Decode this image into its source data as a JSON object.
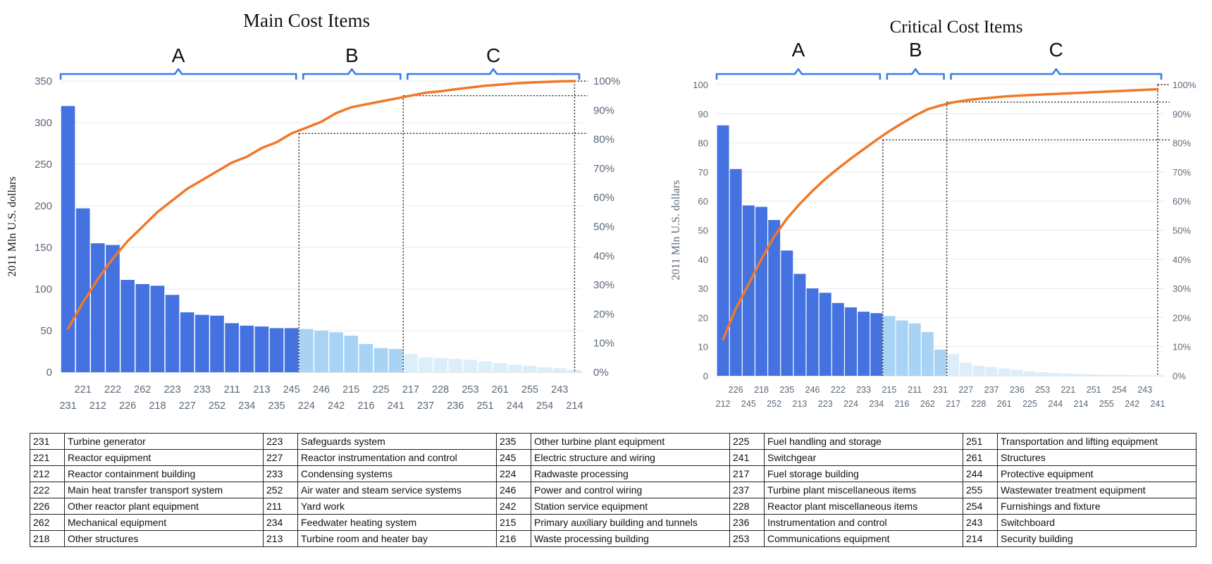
{
  "chart_data": [
    {
      "type": "bar",
      "title": "Main Cost Items",
      "ylabel": "2011 Mln U.S. dollars",
      "ylim": [
        0,
        350
      ],
      "yticks": [
        0,
        50,
        100,
        150,
        200,
        250,
        300,
        350
      ],
      "y2ticks": [
        "0%",
        "10%",
        "20%",
        "30%",
        "40%",
        "50%",
        "60%",
        "70%",
        "80%",
        "90%",
        "100%"
      ],
      "categories": [
        "231",
        "221",
        "212",
        "222",
        "226",
        "262",
        "218",
        "223",
        "227",
        "233",
        "252",
        "211",
        "234",
        "213",
        "235",
        "245",
        "224",
        "246",
        "242",
        "215",
        "216",
        "225",
        "241",
        "217",
        "237",
        "228",
        "236",
        "253",
        "251",
        "261",
        "244",
        "255",
        "254",
        "243",
        "214"
      ],
      "values": [
        320,
        197,
        155,
        153,
        111,
        106,
        104,
        93,
        72,
        69,
        68,
        59,
        56,
        55,
        53,
        53,
        52,
        50,
        48,
        44,
        34,
        29,
        28,
        22,
        18,
        17,
        16,
        15,
        13,
        11,
        9,
        8,
        6,
        5,
        3
      ],
      "cumulative_pct": [
        15,
        24,
        32,
        39,
        45,
        50,
        55,
        59,
        63,
        66,
        69,
        72,
        74,
        77,
        79,
        82,
        84,
        86,
        89,
        91,
        92,
        93,
        94,
        95,
        96,
        96.5,
        97.2,
        97.8,
        98.4,
        98.8,
        99.2,
        99.5,
        99.7,
        99.9,
        100
      ],
      "groups": [
        {
          "label": "A",
          "start": 0,
          "end": 15
        },
        {
          "label": "B",
          "start": 16,
          "end": 22
        },
        {
          "label": "C",
          "start": 23,
          "end": 34
        }
      ],
      "thresholds_pct": [
        82,
        95
      ]
    },
    {
      "type": "bar",
      "title": "Critical Cost Items",
      "ylabel": "2011 Mln U.S. dollars",
      "ylim": [
        0,
        100
      ],
      "yticks": [
        0,
        10,
        20,
        30,
        40,
        50,
        60,
        70,
        80,
        90,
        100
      ],
      "y2ticks": [
        "0%",
        "10%",
        "20%",
        "30%",
        "40%",
        "50%",
        "60%",
        "70%",
        "80%",
        "90%",
        "100%"
      ],
      "categories": [
        "212",
        "226",
        "245",
        "218",
        "252",
        "235",
        "213",
        "246",
        "223",
        "222",
        "224",
        "233",
        "234",
        "215",
        "216",
        "211",
        "262",
        "231",
        "217",
        "227",
        "228",
        "237",
        "261",
        "236",
        "225",
        "253",
        "244",
        "221",
        "214",
        "251",
        "255",
        "254",
        "242",
        "243",
        "241"
      ],
      "values": [
        86,
        71,
        58.5,
        58,
        53.5,
        43,
        35,
        30,
        28.5,
        25,
        23.5,
        22,
        21.5,
        20.5,
        19,
        18,
        15,
        9,
        7.5,
        4.5,
        3.5,
        3,
        2.5,
        2,
        1.5,
        1.2,
        1,
        0.8,
        0.6,
        0.5,
        0.4,
        0.3,
        0.2,
        0.15,
        0.1
      ],
      "cumulative_pct": [
        12.5,
        23,
        31.5,
        40,
        47.8,
        54,
        59,
        63.5,
        67.6,
        71.2,
        74.6,
        77.8,
        81,
        84,
        86.7,
        89.3,
        91.5,
        92.8,
        93.9,
        94.6,
        95.1,
        95.5,
        95.9,
        96.2,
        96.4,
        96.6,
        96.8,
        97,
        97.2,
        97.4,
        97.6,
        97.8,
        98,
        98.2,
        98.4
      ],
      "groups": [
        {
          "label": "A",
          "start": 0,
          "end": 12
        },
        {
          "label": "B",
          "start": 13,
          "end": 17
        },
        {
          "label": "C",
          "start": 18,
          "end": 34
        }
      ],
      "thresholds_pct": [
        81,
        94
      ]
    }
  ],
  "legend_rows": [
    [
      [
        "231",
        "Turbine generator"
      ],
      [
        "223",
        "Safeguards system"
      ],
      [
        "235",
        "Other turbine plant equipment"
      ],
      [
        "225",
        "Fuel handling and storage"
      ],
      [
        "251",
        "Transportation and lifting equipment"
      ]
    ],
    [
      [
        "221",
        "Reactor equipment"
      ],
      [
        "227",
        "Reactor instrumentation and control"
      ],
      [
        "245",
        "Electric structure and wiring"
      ],
      [
        "241",
        "Switchgear"
      ],
      [
        "261",
        "Structures"
      ]
    ],
    [
      [
        "212",
        "Reactor containment building"
      ],
      [
        "233",
        "Condensing systems"
      ],
      [
        "224",
        "Radwaste processing"
      ],
      [
        "217",
        "Fuel storage building"
      ],
      [
        "244",
        "Protective equipment"
      ]
    ],
    [
      [
        "222",
        "Main heat transfer transport system"
      ],
      [
        "252",
        "Air water and steam service systems"
      ],
      [
        "246",
        "Power and control wiring"
      ],
      [
        "237",
        "Turbine plant miscellaneous items"
      ],
      [
        "255",
        "Wastewater treatment equipment"
      ]
    ],
    [
      [
        "226",
        "Other reactor plant equipment"
      ],
      [
        "211",
        "Yard work"
      ],
      [
        "242",
        "Station service equipment"
      ],
      [
        "228",
        "Reactor plant miscellaneous items"
      ],
      [
        "254",
        "Furnishings and fixture"
      ]
    ],
    [
      [
        "262",
        "Mechanical equipment"
      ],
      [
        "234",
        "Feedwater heating system"
      ],
      [
        "215",
        "Primary auxiliary building and tunnels"
      ],
      [
        "236",
        "Instrumentation and control"
      ],
      [
        "243",
        "Switchboard"
      ]
    ],
    [
      [
        "218",
        "Other structures"
      ],
      [
        "213",
        "Turbine room and heater bay"
      ],
      [
        "216",
        "Waste processing building"
      ],
      [
        "253",
        "Communications equipment"
      ],
      [
        "214",
        "Security building"
      ]
    ]
  ],
  "colors": {
    "groupA": "#4472E0",
    "groupB": "#A8D3F5",
    "groupC": "#DDEEFB",
    "cumulative_line": "#F07828",
    "bracket": "#3B7BE8",
    "grid": "#E4E8EE",
    "axis_text": "#5A6878"
  }
}
